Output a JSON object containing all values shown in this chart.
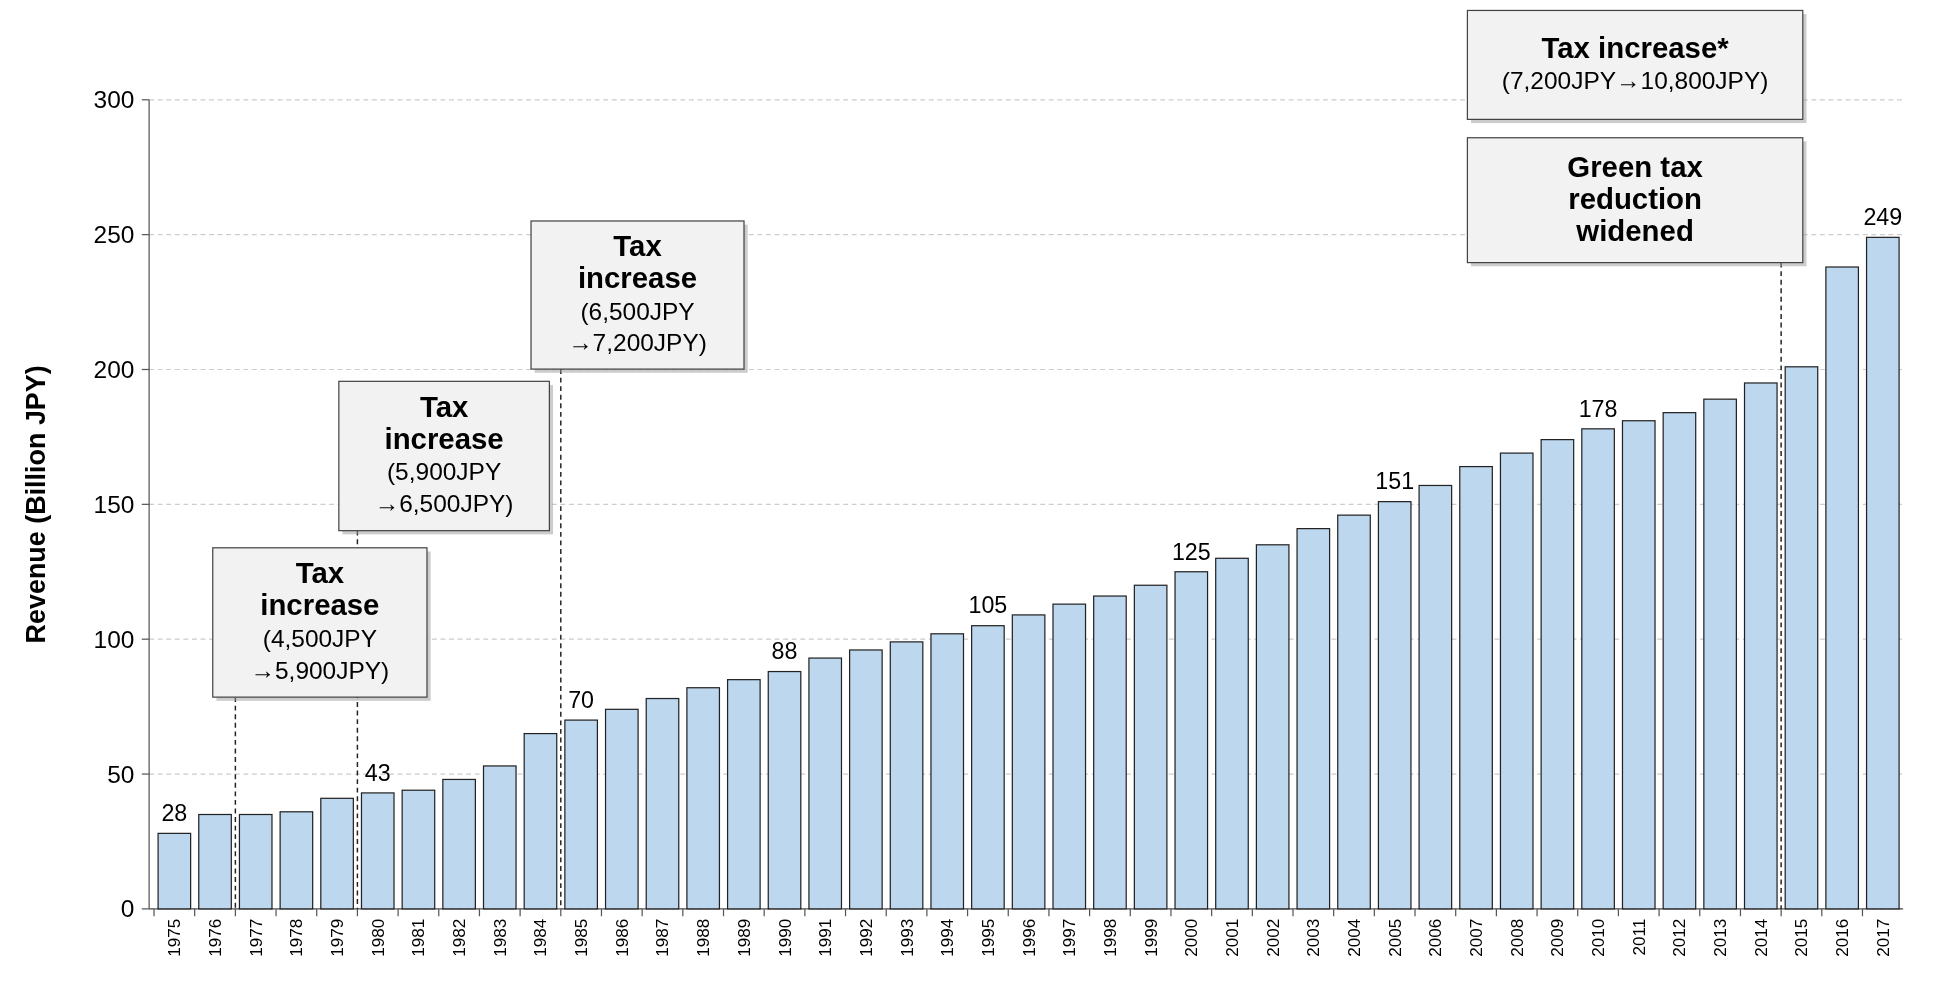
{
  "chart_data": {
    "type": "bar",
    "ylabel": "Revenue (Billion JPY)",
    "categories": [
      "1975",
      "1976",
      "1977",
      "1978",
      "1979",
      "1980",
      "1981",
      "1982",
      "1983",
      "1984",
      "1985",
      "1986",
      "1987",
      "1988",
      "1989",
      "1990",
      "1991",
      "1992",
      "1993",
      "1994",
      "1995",
      "1996",
      "1997",
      "1998",
      "1999",
      "2000",
      "2001",
      "2002",
      "2003",
      "2004",
      "2005",
      "2006",
      "2007",
      "2008",
      "2009",
      "2010",
      "2011",
      "2012",
      "2013",
      "2014",
      "2015",
      "2016",
      "2017"
    ],
    "values": [
      28,
      35,
      35,
      36,
      41,
      43,
      44,
      48,
      53,
      65,
      70,
      74,
      78,
      82,
      85,
      88,
      93,
      96,
      99,
      102,
      105,
      109,
      113,
      116,
      120,
      125,
      130,
      135,
      141,
      146,
      151,
      157,
      164,
      169,
      174,
      178,
      181,
      184,
      189,
      195,
      201,
      238,
      249
    ],
    "value_labels": [
      "28",
      null,
      null,
      null,
      null,
      "43",
      null,
      null,
      null,
      null,
      "70",
      null,
      null,
      null,
      null,
      "88",
      null,
      null,
      null,
      null,
      "105",
      null,
      null,
      null,
      null,
      "125",
      null,
      null,
      null,
      null,
      "151",
      null,
      null,
      null,
      null,
      "178",
      null,
      null,
      null,
      null,
      null,
      null,
      "249"
    ],
    "color": "#bdd7ee",
    "ylim": [
      0,
      300
    ],
    "yticks": [
      0,
      50,
      100,
      150,
      200,
      250,
      300
    ],
    "grid": "y",
    "ref_lines": [
      {
        "axis": "x",
        "value": "1976",
        "line_style": "dashed"
      },
      {
        "axis": "x",
        "value": "1979",
        "line_style": "dashed"
      },
      {
        "axis": "x",
        "value": "1984",
        "line_style": "dashed"
      },
      {
        "axis": "x",
        "value": "2014",
        "line_style": "dashed"
      }
    ],
    "annotations": [
      "Tax\nincrease\n(4,500JPY\n→5,900JPY)",
      "Tax\nincrease\n(5,900JPY\n→6,500JPY)",
      "Tax\nincrease\n(6,500JPY\n→7,200JPY)",
      "Tax increase*\n(7,200JPY→10,800JPY)",
      "Green tax\nreduction\nwidened"
    ]
  }
}
